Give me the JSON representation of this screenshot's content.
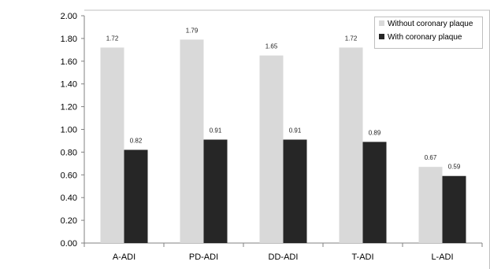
{
  "chart_data": {
    "type": "bar",
    "categories": [
      "A-ADI",
      "PD-ADI",
      "DD-ADI",
      "T-ADI",
      "L-ADI"
    ],
    "series": [
      {
        "name": "Without coronary plaque",
        "values": [
          1.72,
          1.79,
          1.65,
          1.72,
          0.67
        ],
        "labels": [
          "1.72",
          "1.79",
          "1.65",
          "1.72",
          "0.67"
        ],
        "color": "#d9d9d9"
      },
      {
        "name": "With coronary plaque",
        "values": [
          0.82,
          0.91,
          0.91,
          0.89,
          0.59
        ],
        "labels": [
          "0.82",
          "0.91",
          "0.91",
          "0.89",
          "0.59"
        ],
        "color": "#262626"
      }
    ],
    "yticks": [
      "0.00",
      "0.20",
      "0.40",
      "0.60",
      "0.80",
      "1.00",
      "1.20",
      "1.40",
      "1.60",
      "1.80",
      "2.00"
    ],
    "ylim": [
      0,
      2.0
    ],
    "title": "",
    "xlabel": "",
    "ylabel": "",
    "grid": false,
    "legend_position": "top-right"
  }
}
